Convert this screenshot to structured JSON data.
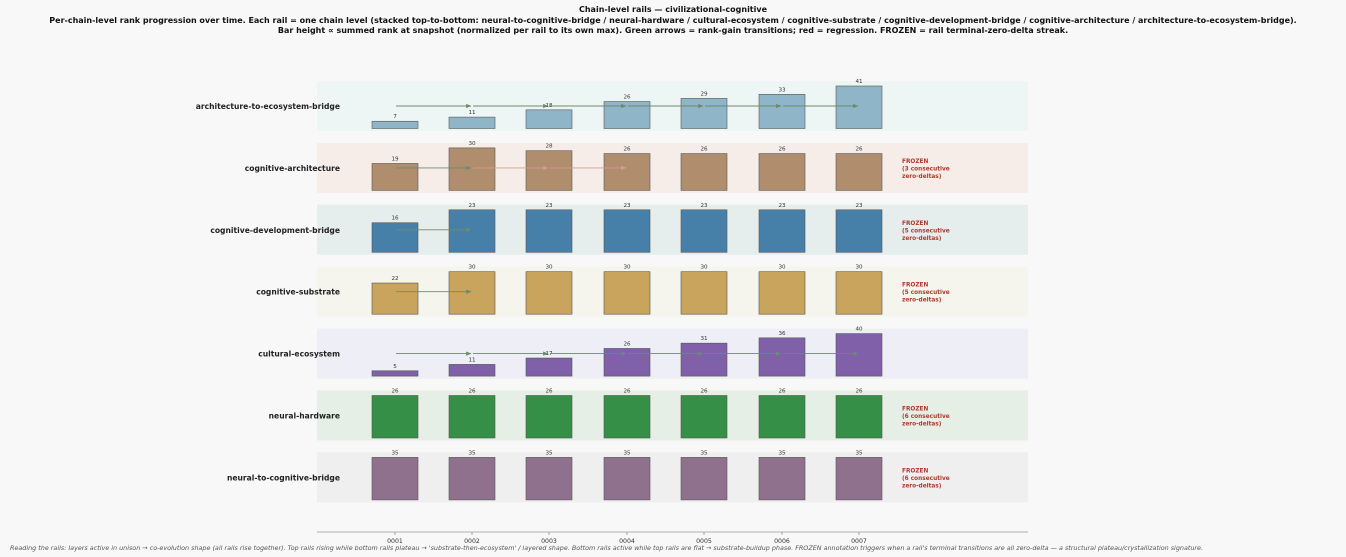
{
  "title": {
    "line1": "Chain-level rails — civilizational-cognitive",
    "line2": "Per-chain-level rank progression over time. Each rail = one chain level (stacked top-to-bottom: neural-to-cognitive-bridge / neural-hardware / cultural-ecosystem / cognitive-substrate / cognitive-development-bridge / cognitive-architecture / architecture-to-ecosystem-bridge).",
    "line3": "Bar height ∝ summed rank at snapshot (normalized per rail to its own max). Green arrows = rank-gain transitions; red = regression. FROZEN = rail terminal-zero-delta streak."
  },
  "footer": "Reading the rails: layers active in unison → co-evolution shape (all rails rise together).  Top rails rising while bottom rails plateau → 'substrate-then-ecosystem' / layered shape.  Bottom rails active while top rails are flat → substrate-buildup phase. FROZEN annotation triggers when a rail's terminal transitions are all zero-delta — a structural plateau/crystallization signature.",
  "chart_data": {
    "type": "bar",
    "categories": [
      "0001",
      "0002",
      "0003",
      "0004",
      "0005",
      "0006",
      "0007"
    ],
    "colors": {
      "gain_arrow": "#6e8a6e",
      "regression_arrow": "#d49c94",
      "frozen_text": "#b03a2e"
    },
    "rails": [
      {
        "name": "architecture-to-ecosystem-bridge",
        "values": [
          7,
          11,
          18,
          26,
          29,
          33,
          41
        ],
        "color": "#8fb5c9",
        "band": "#eef6f5",
        "frozen": null
      },
      {
        "name": "cognitive-architecture",
        "values": [
          19,
          30,
          28,
          26,
          26,
          26,
          26
        ],
        "color": "#b08d6c",
        "band": "#f6ede8",
        "frozen": [
          "FROZEN",
          "(3 consecutive",
          "zero-deltas)"
        ]
      },
      {
        "name": "cognitive-development-bridge",
        "values": [
          16,
          23,
          23,
          23,
          23,
          23,
          23
        ],
        "color": "#4680a9",
        "band": "#e6eeed",
        "frozen": [
          "FROZEN",
          "(5 consecutive",
          "zero-deltas)"
        ]
      },
      {
        "name": "cognitive-substrate",
        "values": [
          22,
          30,
          30,
          30,
          30,
          30,
          30
        ],
        "color": "#c8a45c",
        "band": "#f5f5ee",
        "frozen": [
          "FROZEN",
          "(5 consecutive",
          "zero-deltas)"
        ]
      },
      {
        "name": "cultural-ecosystem",
        "values": [
          5,
          11,
          17,
          26,
          31,
          36,
          40
        ],
        "color": "#8060a8",
        "band": "#eeeef6",
        "frozen": null
      },
      {
        "name": "neural-hardware",
        "values": [
          26,
          26,
          26,
          26,
          26,
          26,
          26
        ],
        "color": "#368f46",
        "band": "#e6efe6",
        "frozen": [
          "FROZEN",
          "(6 consecutive",
          "zero-deltas)"
        ]
      },
      {
        "name": "neural-to-cognitive-bridge",
        "values": [
          35,
          35,
          35,
          35,
          35,
          35,
          35
        ],
        "color": "#8f718e",
        "band": "#efefef",
        "frozen": [
          "FROZEN",
          "(6 consecutive",
          "zero-deltas)"
        ]
      }
    ]
  }
}
